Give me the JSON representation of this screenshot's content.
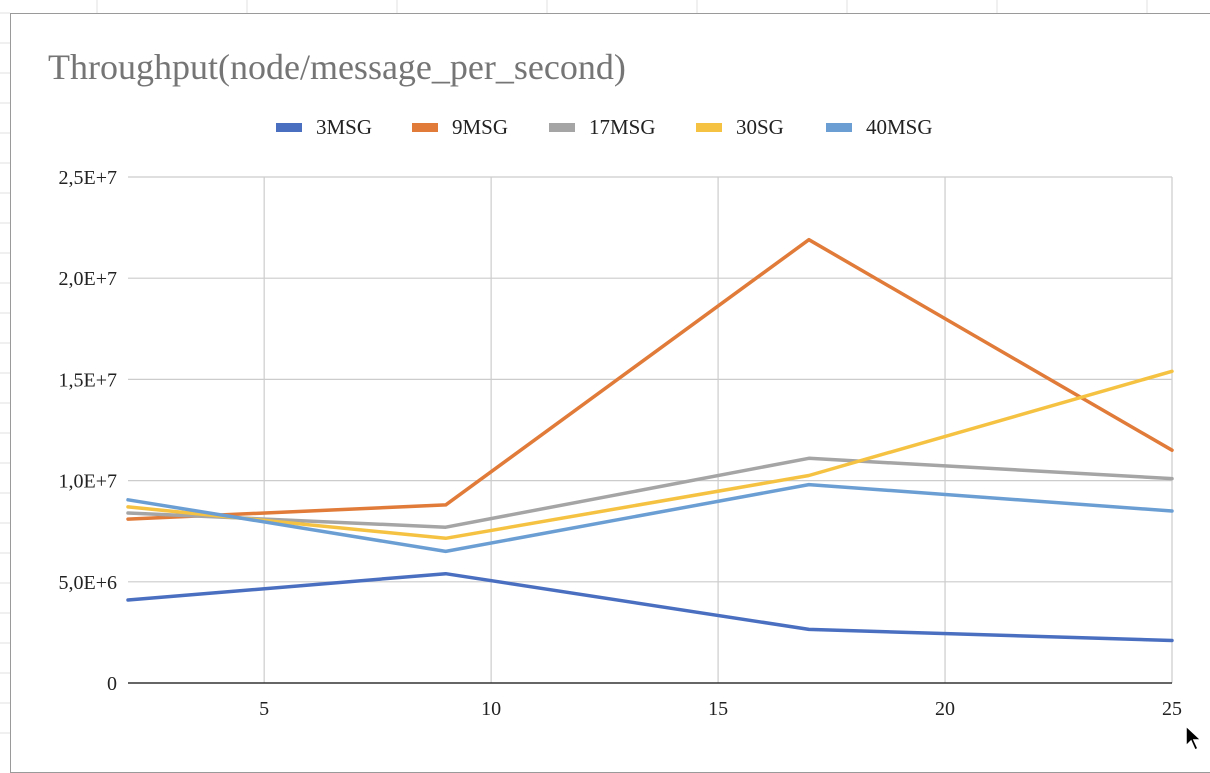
{
  "chart_data": {
    "type": "line",
    "title": "Throughput(node/message_per_second)",
    "xlabel": "",
    "ylabel": "",
    "x": [
      2,
      9,
      17,
      25
    ],
    "xlim": [
      2,
      25
    ],
    "ylim": [
      0,
      25000000
    ],
    "x_ticks": [
      5,
      10,
      15,
      20,
      25
    ],
    "x_tick_labels": [
      "5",
      "10",
      "15",
      "20",
      "25"
    ],
    "y_ticks": [
      0,
      5000000,
      10000000,
      15000000,
      20000000,
      25000000
    ],
    "y_tick_labels": [
      "0",
      "5,0E+6",
      "1,0E+7",
      "1,5E+7",
      "2,0E+7",
      "2,5E+7"
    ],
    "grid": true,
    "legend_position": "top",
    "series": [
      {
        "name": "3MSG",
        "color": "#4a6fc1",
        "values": [
          4100000,
          5400000,
          2650000,
          2100000
        ]
      },
      {
        "name": "9MSG",
        "color": "#e07b39",
        "values": [
          8100000,
          8800000,
          21900000,
          11500000
        ]
      },
      {
        "name": "17MSG",
        "color": "#a5a5a5",
        "values": [
          8400000,
          7700000,
          11100000,
          10100000
        ]
      },
      {
        "name": "30SG",
        "color": "#f5c242",
        "values": [
          8700000,
          7150000,
          10250000,
          15400000
        ]
      },
      {
        "name": "40MSG",
        "color": "#6b9fd4",
        "values": [
          9050000,
          6500000,
          9800000,
          8500000
        ]
      }
    ]
  }
}
